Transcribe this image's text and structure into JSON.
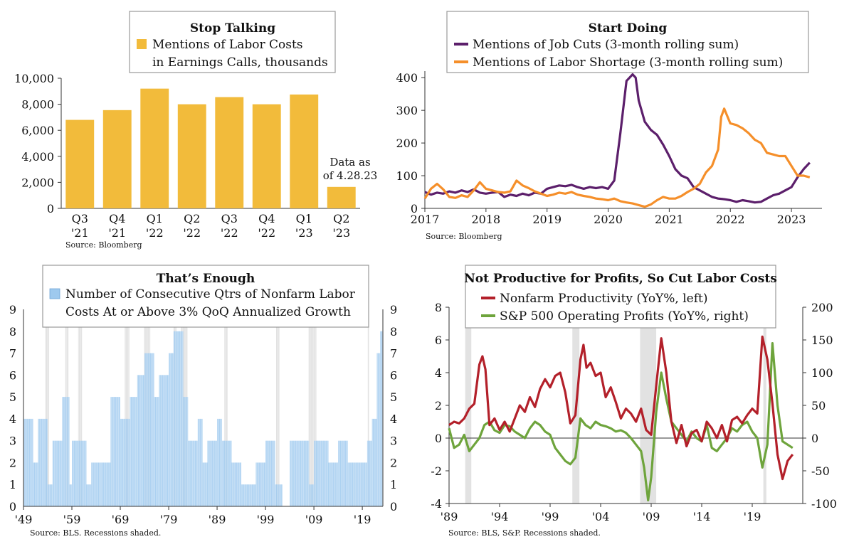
{
  "chart_data": [
    {
      "id": "stop-talking",
      "type": "bar",
      "title": "Stop Talking",
      "legend": [
        "Mentions of Labor Costs",
        "in Earnings Calls, thousands"
      ],
      "series": [
        {
          "name": "Mentions of Labor Costs in Earnings Calls, thousands",
          "color": "#f2bb3b"
        }
      ],
      "categories": [
        [
          "Q3",
          "'21"
        ],
        [
          "Q4",
          "'21"
        ],
        [
          "Q1",
          "'22"
        ],
        [
          "Q2",
          "'22"
        ],
        [
          "Q3",
          "'22"
        ],
        [
          "Q4",
          "'22"
        ],
        [
          "Q1",
          "'23"
        ],
        [
          "Q2",
          "'23"
        ]
      ],
      "values": [
        6800,
        7550,
        9200,
        8000,
        8550,
        8000,
        8750,
        1650
      ],
      "yticks": [
        "0",
        "2,000",
        "4,000",
        "6,000",
        "8,000",
        "10,000"
      ],
      "ylim": [
        0,
        10000
      ],
      "annotation": [
        "Data as",
        "of 4.28.23"
      ],
      "source": "Source: Bloomberg"
    },
    {
      "id": "start-doing",
      "type": "line",
      "title": "Start Doing",
      "xticks": [
        "2017",
        "2018",
        "2019",
        "2020",
        "2021",
        "2022",
        "2023"
      ],
      "xlim": [
        2017,
        2023.5
      ],
      "yticks": [
        "0",
        "100",
        "200",
        "300",
        "400"
      ],
      "ylim": [
        0,
        420
      ],
      "series": [
        {
          "name": "Mentions of Job Cuts (3-month rolling sum)",
          "color": "#5c1f6b",
          "x": [
            2017,
            2017.1,
            2017.2,
            2017.3,
            2017.4,
            2017.5,
            2017.6,
            2017.7,
            2017.8,
            2017.9,
            2018,
            2018.1,
            2018.2,
            2018.3,
            2018.4,
            2018.5,
            2018.6,
            2018.7,
            2018.8,
            2018.9,
            2019,
            2019.1,
            2019.2,
            2019.3,
            2019.4,
            2019.5,
            2019.6,
            2019.7,
            2019.8,
            2019.9,
            2020,
            2020.1,
            2020.2,
            2020.3,
            2020.4,
            2020.45,
            2020.5,
            2020.6,
            2020.7,
            2020.8,
            2020.9,
            2021,
            2021.1,
            2021.2,
            2021.3,
            2021.4,
            2021.5,
            2021.6,
            2021.7,
            2021.8,
            2021.9,
            2022,
            2022.1,
            2022.2,
            2022.3,
            2022.4,
            2022.5,
            2022.6,
            2022.7,
            2022.8,
            2022.9,
            2023,
            2023.1,
            2023.2,
            2023.3
          ],
          "y": [
            50,
            42,
            48,
            45,
            52,
            48,
            55,
            50,
            58,
            48,
            45,
            48,
            50,
            35,
            42,
            38,
            45,
            40,
            48,
            45,
            60,
            65,
            70,
            68,
            72,
            65,
            60,
            65,
            62,
            65,
            60,
            85,
            230,
            390,
            410,
            400,
            330,
            265,
            240,
            225,
            195,
            160,
            120,
            100,
            92,
            65,
            55,
            45,
            35,
            30,
            28,
            25,
            20,
            25,
            22,
            18,
            20,
            30,
            40,
            45,
            55,
            65,
            95,
            120,
            140
          ]
        },
        {
          "name": "Mentions of Labor Shortage (3-month rolling sum)",
          "color": "#f58f2a",
          "x": [
            2017,
            2017.1,
            2017.2,
            2017.3,
            2017.4,
            2017.5,
            2017.6,
            2017.7,
            2017.8,
            2017.9,
            2018,
            2018.1,
            2018.2,
            2018.3,
            2018.4,
            2018.5,
            2018.6,
            2018.7,
            2018.8,
            2018.9,
            2019,
            2019.1,
            2019.2,
            2019.3,
            2019.4,
            2019.5,
            2019.6,
            2019.7,
            2019.8,
            2019.9,
            2020,
            2020.1,
            2020.2,
            2020.3,
            2020.4,
            2020.5,
            2020.6,
            2020.7,
            2020.8,
            2020.9,
            2021,
            2021.1,
            2021.2,
            2021.3,
            2021.4,
            2021.5,
            2021.6,
            2021.7,
            2021.8,
            2021.85,
            2021.9,
            2022,
            2022.1,
            2022.2,
            2022.3,
            2022.4,
            2022.5,
            2022.6,
            2022.7,
            2022.8,
            2022.9,
            2023,
            2023.1,
            2023.2,
            2023.3
          ],
          "y": [
            30,
            60,
            75,
            58,
            35,
            32,
            40,
            35,
            55,
            80,
            60,
            55,
            50,
            48,
            52,
            85,
            70,
            62,
            52,
            45,
            38,
            42,
            48,
            45,
            50,
            42,
            38,
            35,
            30,
            28,
            25,
            30,
            22,
            18,
            15,
            10,
            5,
            12,
            25,
            35,
            30,
            30,
            38,
            50,
            60,
            75,
            110,
            130,
            180,
            280,
            305,
            260,
            255,
            245,
            230,
            210,
            200,
            170,
            165,
            160,
            160,
            130,
            100,
            100,
            95
          ]
        }
      ],
      "source": "Source: Bloomberg"
    },
    {
      "id": "thats-enough",
      "type": "bar",
      "title": "That’s Enough",
      "legend": [
        "Number of Consecutive Qtrs of Nonfarm Labor",
        "Costs At or Above 3% QoQ Annualized Growth"
      ],
      "series": [
        {
          "name": "Number of Consecutive Qtrs of Nonfarm Labor Costs At or Above 3% QoQ Annualized Growth",
          "color": "#9ec9ee"
        }
      ],
      "xticks": [
        "'49",
        "'59",
        "'69",
        "'79",
        "'89",
        "'99",
        "'09",
        "'19"
      ],
      "xlim": [
        1949,
        2023.25
      ],
      "yticks": [
        "0",
        "1",
        "2",
        "3",
        "4",
        "5",
        "6",
        "7",
        "8",
        "9"
      ],
      "ylim": [
        0,
        9
      ],
      "recessions": [
        [
          1953.5,
          1954.3
        ],
        [
          1957.6,
          1958.3
        ],
        [
          1960.3,
          1961.1
        ],
        [
          1969.9,
          1970.9
        ],
        [
          1973.9,
          1975.2
        ],
        [
          1980,
          1980.6
        ],
        [
          1981.5,
          1982.9
        ],
        [
          1990.5,
          1991.2
        ],
        [
          2001.2,
          2001.9
        ],
        [
          2007.9,
          2009.5
        ],
        [
          2020.1,
          2020.4
        ]
      ],
      "segments": [
        [
          1949,
          1951,
          4
        ],
        [
          1951,
          1952,
          2
        ],
        [
          1952,
          1954,
          4
        ],
        [
          1954,
          1955,
          1
        ],
        [
          1955,
          1957,
          3
        ],
        [
          1957,
          1958.5,
          5
        ],
        [
          1958.5,
          1959,
          1
        ],
        [
          1959,
          1962,
          3
        ],
        [
          1962,
          1963,
          1
        ],
        [
          1963,
          1965,
          2
        ],
        [
          1965,
          1967,
          2
        ],
        [
          1967,
          1969,
          5
        ],
        [
          1969,
          1971,
          4
        ],
        [
          1971,
          1972.5,
          5
        ],
        [
          1972.5,
          1974,
          6
        ],
        [
          1974,
          1976,
          7
        ],
        [
          1976,
          1977,
          5
        ],
        [
          1977,
          1979,
          6
        ],
        [
          1979,
          1980,
          7
        ],
        [
          1980,
          1982,
          8
        ],
        [
          1982,
          1983,
          5
        ],
        [
          1983,
          1985,
          3
        ],
        [
          1985,
          1986,
          4
        ],
        [
          1986,
          1987,
          2
        ],
        [
          1987,
          1989,
          3
        ],
        [
          1989,
          1990,
          4
        ],
        [
          1990,
          1992,
          3
        ],
        [
          1992,
          1994,
          2
        ],
        [
          1994,
          1997,
          1
        ],
        [
          1997,
          1999,
          2
        ],
        [
          1999,
          2001,
          3
        ],
        [
          2001,
          2002.5,
          1
        ],
        [
          2002.5,
          2004,
          0
        ],
        [
          2004,
          2006,
          3
        ],
        [
          2006,
          2008,
          3
        ],
        [
          2008,
          2009,
          1
        ],
        [
          2009,
          2012,
          3
        ],
        [
          2012,
          2014,
          2
        ],
        [
          2014,
          2016,
          3
        ],
        [
          2016,
          2018,
          2
        ],
        [
          2018,
          2020,
          2
        ],
        [
          2020,
          2021,
          3
        ],
        [
          2021,
          2022,
          4
        ],
        [
          2022,
          2022.7,
          7
        ],
        [
          2022.7,
          2023.25,
          8
        ]
      ],
      "source": "Source: BLS. Recessions shaded."
    },
    {
      "id": "not-productive",
      "type": "line",
      "title": "Not Productive for Profits, So Cut Labor Costs",
      "xticks": [
        "'89",
        "'94",
        "'99",
        "'04",
        "'09",
        "'14",
        "'19"
      ],
      "xlim": [
        1989,
        2024
      ],
      "yticks_left": [
        "-4",
        "-2",
        "0",
        "2",
        "4",
        "6",
        "8"
      ],
      "ylim_left": [
        -4,
        8
      ],
      "yticks_right": [
        "-100",
        "-50",
        "0",
        "50",
        "100",
        "150",
        "200"
      ],
      "ylim_right": [
        -100,
        200
      ],
      "recessions": [
        [
          1990.6,
          1991.2
        ],
        [
          2001.2,
          2001.9
        ],
        [
          2007.9,
          2009.5
        ],
        [
          2020.1,
          2020.4
        ]
      ],
      "series": [
        {
          "name": "Nonfarm Productivity (YoY%, left)",
          "axis": "left",
          "color": "#b3202a",
          "x": [
            1989,
            1989.5,
            1990,
            1990.5,
            1991,
            1991.5,
            1992,
            1992.3,
            1992.6,
            1993,
            1993.5,
            1994,
            1994.5,
            1995,
            1995.5,
            1996,
            1996.5,
            1997,
            1997.5,
            1998,
            1998.5,
            1999,
            1999.5,
            2000,
            2000.5,
            2001,
            2001.5,
            2002,
            2002.3,
            2002.6,
            2003,
            2003.5,
            2004,
            2004.5,
            2005,
            2005.5,
            2006,
            2006.5,
            2007,
            2007.5,
            2008,
            2008.5,
            2009,
            2009.5,
            2010,
            2010.5,
            2011,
            2011.5,
            2012,
            2012.5,
            2013,
            2013.5,
            2014,
            2014.5,
            2015,
            2015.5,
            2016,
            2016.5,
            2017,
            2017.5,
            2018,
            2018.5,
            2019,
            2019.5,
            2020,
            2020.5,
            2021,
            2021.5,
            2022,
            2022.5,
            2023
          ],
          "y": [
            0.8,
            1,
            0.9,
            1.2,
            1.8,
            2.1,
            4.5,
            5,
            4.2,
            0.8,
            1.2,
            0.5,
            1,
            0.4,
            1.2,
            2,
            1.6,
            2.5,
            1.9,
            3,
            3.6,
            3.1,
            3.8,
            4,
            2.8,
            0.9,
            1.4,
            4.8,
            5.7,
            4.3,
            4.6,
            3.8,
            4,
            2.5,
            3.1,
            2.2,
            1.2,
            1.8,
            1.5,
            1,
            1.8,
            0.5,
            0.2,
            3.2,
            6.1,
            4,
            1,
            -0.3,
            0.8,
            -0.5,
            0.3,
            0.5,
            -0.2,
            1,
            0.6,
            0,
            0.8,
            -0.2,
            1.1,
            1.3,
            0.9,
            1.4,
            1.8,
            1.5,
            6.2,
            4.8,
            2.1,
            -1,
            -2.5,
            -1.4,
            -1
          ]
        },
        {
          "name": "S&P 500 Operating Profits (YoY%, right)",
          "axis": "right",
          "color": "#6ea43c",
          "x": [
            1989,
            1989.5,
            1990,
            1990.5,
            1991,
            1991.5,
            1992,
            1992.5,
            1993,
            1993.5,
            1994,
            1994.5,
            1995,
            1995.5,
            1996,
            1996.5,
            1997,
            1997.5,
            1998,
            1998.5,
            1999,
            1999.5,
            2000,
            2000.5,
            2001,
            2001.5,
            2002,
            2002.5,
            2003,
            2003.5,
            2004,
            2004.5,
            2005,
            2005.5,
            2006,
            2006.5,
            2007,
            2007.5,
            2008,
            2008.3,
            2008.7,
            2009,
            2009.5,
            2010,
            2010.5,
            2011,
            2011.5,
            2012,
            2012.5,
            2013,
            2013.5,
            2014,
            2014.5,
            2015,
            2015.5,
            2016,
            2016.5,
            2017,
            2017.5,
            2018,
            2018.5,
            2019,
            2019.5,
            2020,
            2020.5,
            2021,
            2021.5,
            2022,
            2022.5,
            2023
          ],
          "y": [
            15,
            -15,
            -10,
            5,
            -20,
            -10,
            0,
            20,
            25,
            12,
            8,
            20,
            18,
            10,
            5,
            0,
            15,
            25,
            20,
            10,
            5,
            -15,
            -25,
            -35,
            -40,
            -30,
            30,
            20,
            15,
            25,
            20,
            18,
            15,
            10,
            12,
            8,
            0,
            -10,
            -20,
            -45,
            -95,
            -60,
            40,
            100,
            60,
            25,
            15,
            5,
            -5,
            10,
            0,
            -5,
            20,
            -15,
            -20,
            -10,
            0,
            15,
            10,
            20,
            25,
            10,
            0,
            -45,
            -10,
            145,
            50,
            -5,
            -10,
            -15
          ]
        }
      ],
      "source": "Source: BLS, S&P. Recessions shaded."
    }
  ]
}
